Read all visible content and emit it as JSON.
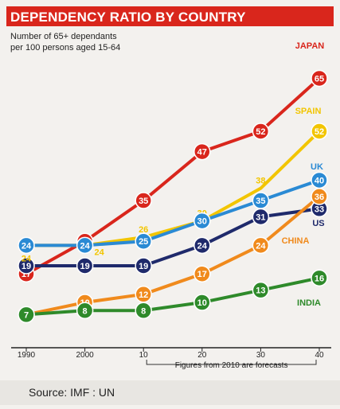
{
  "header": {
    "title": "DEPENDENCY RATIO BY COUNTRY",
    "subtitle_line1": "Number of 65+ dependants",
    "subtitle_line2": "per 100 persons aged 15-64"
  },
  "footer": {
    "source": "Source: IMF : UN"
  },
  "chart_data": {
    "type": "line",
    "title": "DEPENDENCY RATIO BY COUNTRY",
    "ylabel": "Number of 65+ dependants per 100 persons aged 15-64",
    "x": [
      1990,
      2000,
      2010,
      2020,
      2030,
      2040
    ],
    "tick_labels": [
      "1990",
      "2000",
      "10",
      "20",
      "30",
      "40"
    ],
    "annotation": "Figures from 2010 are forecasts",
    "grid": false,
    "series": [
      {
        "name": "JAPAN",
        "color": "#d9261c",
        "values": [
          17,
          25,
          35,
          47,
          52,
          65
        ]
      },
      {
        "name": "SPAIN",
        "color": "#f2c500",
        "values": [
          24,
          24,
          26,
          30,
          38,
          52
        ]
      },
      {
        "name": "UK",
        "color": "#2a8ad4",
        "values": [
          24,
          24,
          25,
          30,
          35,
          40
        ]
      },
      {
        "name": "US",
        "color": "#1f2a6b",
        "values": [
          19,
          19,
          19,
          24,
          31,
          33
        ]
      },
      {
        "name": "CHINA",
        "color": "#f08a1c",
        "values": [
          7,
          10,
          12,
          17,
          24,
          36
        ]
      },
      {
        "name": "INDIA",
        "color": "#2e8a2a",
        "values": [
          7,
          8,
          8,
          10,
          13,
          16
        ]
      }
    ]
  }
}
